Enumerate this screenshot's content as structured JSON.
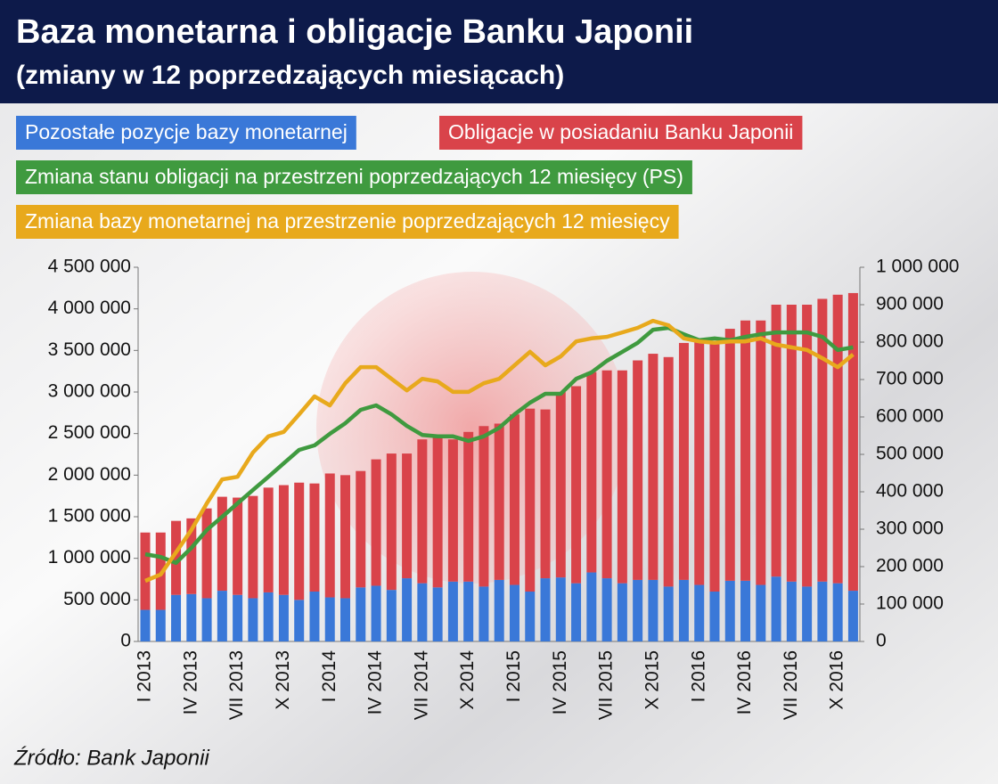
{
  "chart_data": {
    "type": "bar",
    "title": "Baza monetarna i obligacje Banku Japonii",
    "subtitle": "(zmiany w 12 poprzedzających miesiącach)",
    "source": "Źródło: Bank Japonii",
    "categories": [
      "I 2013",
      null,
      null,
      "IV 2013",
      null,
      null,
      "VII 2013",
      null,
      null,
      "X 2013",
      null,
      null,
      "I 2014",
      null,
      null,
      "IV 2014",
      null,
      null,
      "VII 2014",
      null,
      null,
      "X 2014",
      null,
      null,
      "I 2015",
      null,
      null,
      "IV 2015",
      null,
      null,
      "VII 2015",
      null,
      null,
      "X 2015",
      null,
      null,
      "I 2016",
      null,
      null,
      "IV 2016",
      null,
      null,
      "VII 2016",
      null,
      null,
      "X 2016",
      null
    ],
    "stacked": true,
    "series": [
      {
        "name": "Pozostałe pozycje bazy monetarnej",
        "type": "bar",
        "color": "#3a78d8",
        "values": [
          380000,
          380000,
          560000,
          570000,
          520000,
          610000,
          560000,
          520000,
          590000,
          560000,
          500000,
          600000,
          530000,
          520000,
          650000,
          670000,
          620000,
          760000,
          700000,
          650000,
          720000,
          720000,
          660000,
          740000,
          680000,
          600000,
          760000,
          770000,
          700000,
          830000,
          760000,
          700000,
          740000,
          740000,
          660000,
          740000,
          680000,
          600000,
          730000,
          730000,
          680000,
          780000,
          720000,
          660000,
          720000,
          700000,
          610000
        ]
      },
      {
        "name": "Obligacje w posiadaniu Banku Japonii",
        "type": "bar",
        "color": "#d9434a",
        "values": [
          930000,
          930000,
          890000,
          910000,
          1080000,
          1130000,
          1170000,
          1230000,
          1260000,
          1320000,
          1410000,
          1300000,
          1490000,
          1480000,
          1400000,
          1520000,
          1640000,
          1500000,
          1730000,
          1810000,
          1710000,
          1800000,
          1930000,
          1880000,
          2050000,
          2200000,
          2030000,
          2230000,
          2370000,
          2410000,
          2500000,
          2560000,
          2640000,
          2720000,
          2760000,
          2850000,
          2940000,
          3000000,
          3030000,
          3130000,
          3180000,
          3270000,
          3330000,
          3390000,
          3400000,
          3470000,
          3580000
        ]
      },
      {
        "name": "Zmiana stanu obligacji na przestrzeni poprzedzających 12 miesięcy (PS)",
        "type": "line",
        "axis": "y2",
        "color": "#3f9a3f",
        "values": [
          233000,
          226000,
          210000,
          250000,
          298000,
          333000,
          369000,
          405000,
          440000,
          476000,
          512000,
          524000,
          555000,
          583000,
          619000,
          631000,
          607000,
          576000,
          552000,
          548000,
          548000,
          536000,
          548000,
          571000,
          607000,
          638000,
          662000,
          662000,
          702000,
          719000,
          750000,
          774000,
          798000,
          833000,
          838000,
          821000,
          805000,
          810000,
          805000,
          814000,
          821000,
          826000,
          826000,
          826000,
          814000,
          779000,
          786000
        ]
      },
      {
        "name": "Zmiana bazy monetarnej na przestrzenie poprzedzających 12 miesięcy",
        "type": "line",
        "axis": "y2",
        "color": "#e8a91c",
        "values": [
          162000,
          179000,
          238000,
          298000,
          369000,
          433000,
          440000,
          505000,
          548000,
          560000,
          607000,
          655000,
          631000,
          690000,
          733000,
          733000,
          702000,
          671000,
          702000,
          695000,
          667000,
          667000,
          690000,
          702000,
          738000,
          774000,
          738000,
          762000,
          802000,
          810000,
          814000,
          826000,
          838000,
          857000,
          845000,
          810000,
          802000,
          798000,
          802000,
          802000,
          810000,
          793000,
          786000,
          779000,
          757000,
          733000,
          767000
        ]
      }
    ],
    "ylim": [
      0,
      4500000
    ],
    "yticks": [
      0,
      {
        "value": 500000,
        "label": "500 000"
      },
      {
        "value": 1000000,
        "label": "1 000 000"
      },
      {
        "value": 1500000,
        "label": "1 500 000"
      },
      {
        "value": 2000000,
        "label": "2 000 000"
      },
      {
        "value": 2500000,
        "label": "2 500 000"
      },
      {
        "value": 3000000,
        "label": "3 000 000"
      },
      {
        "value": 3500000,
        "label": "3 500 000"
      },
      {
        "value": 4000000,
        "label": "4 000 000"
      },
      {
        "value": 4500000,
        "label": "4 500 000"
      }
    ],
    "y2lim": [
      0,
      1000000
    ],
    "y2ticks": [
      0,
      {
        "value": 100000,
        "label": "100 000"
      },
      {
        "value": 200000,
        "label": "200 000"
      },
      {
        "value": 300000,
        "label": "300 000"
      },
      {
        "value": 400000,
        "label": "400 000"
      },
      {
        "value": 500000,
        "label": "500 000"
      },
      {
        "value": 600000,
        "label": "600 000"
      },
      {
        "value": 700000,
        "label": "700 000"
      },
      {
        "value": 800000,
        "label": "800 000"
      },
      {
        "value": 900000,
        "label": "900 000"
      },
      {
        "value": 1000000,
        "label": "1 000 000"
      }
    ]
  }
}
